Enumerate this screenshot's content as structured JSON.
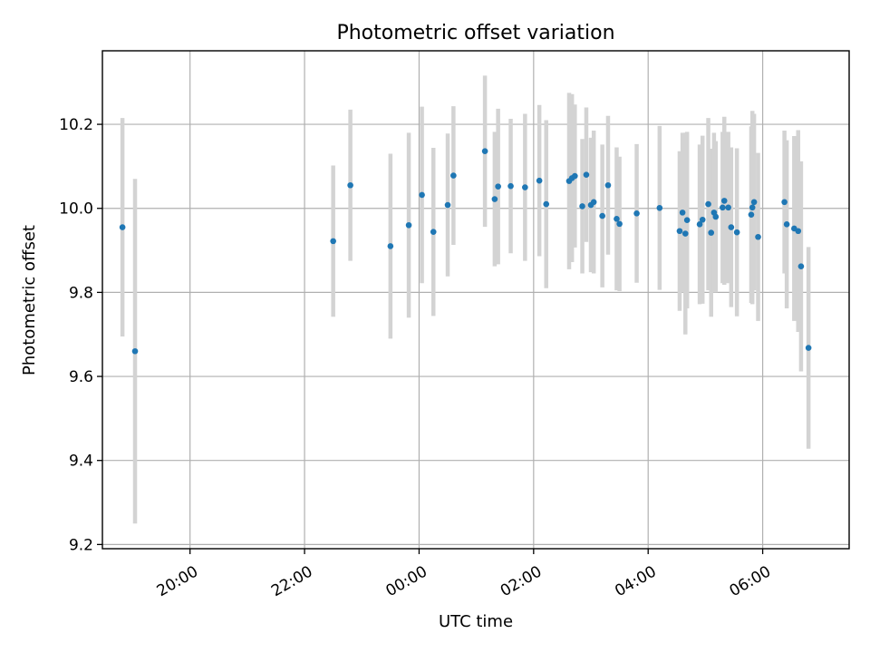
{
  "chart_data": {
    "type": "scatter",
    "title": "Photometric offset variation",
    "xlabel": "UTC time",
    "ylabel": "Photometric offset",
    "grid": true,
    "xlim": [
      18.47,
      31.51
    ],
    "ylim": [
      9.19,
      10.375
    ],
    "x_ticks": [
      {
        "value": 20,
        "label": "20:00"
      },
      {
        "value": 22,
        "label": "22:00"
      },
      {
        "value": 24,
        "label": "00:00"
      },
      {
        "value": 26,
        "label": "02:00"
      },
      {
        "value": 28,
        "label": "04:00"
      },
      {
        "value": 30,
        "label": "06:00"
      }
    ],
    "y_ticks": [
      {
        "value": 9.2,
        "label": "9.2"
      },
      {
        "value": 9.4,
        "label": "9.4"
      },
      {
        "value": 9.6,
        "label": "9.6"
      },
      {
        "value": 9.8,
        "label": "9.8"
      },
      {
        "value": 10.0,
        "label": "10.0"
      },
      {
        "value": 10.2,
        "label": "10.2"
      }
    ],
    "colors": {
      "points": "#1f77b4",
      "error_bars": "#d3d3d3",
      "grid": "#b0b0b0"
    },
    "series": [
      {
        "x": [
          18.82,
          19.04,
          22.5,
          22.8,
          23.5,
          23.82,
          24.05,
          24.25,
          24.5,
          24.6,
          25.15,
          25.32,
          25.38,
          25.6,
          25.85,
          26.1,
          26.22,
          26.62,
          26.67,
          26.72,
          26.85,
          26.92,
          27.0,
          27.05,
          27.2,
          27.3,
          27.45,
          27.5,
          27.8,
          28.2,
          28.55,
          28.6,
          28.65,
          28.68,
          28.9,
          28.95,
          29.05,
          29.1,
          29.15,
          29.18,
          29.3,
          29.33,
          29.4,
          29.45,
          29.55,
          29.8,
          29.82,
          29.85,
          29.92,
          30.38,
          30.42,
          30.55,
          30.62,
          30.67,
          30.8
        ],
        "y": [
          9.955,
          9.66,
          9.922,
          10.055,
          9.91,
          9.96,
          10.032,
          9.944,
          10.008,
          10.078,
          10.136,
          10.022,
          10.052,
          10.053,
          10.05,
          10.066,
          10.01,
          10.065,
          10.072,
          10.077,
          10.005,
          10.08,
          10.008,
          10.015,
          9.982,
          10.055,
          9.975,
          9.963,
          9.988,
          10.001,
          9.946,
          9.99,
          9.94,
          9.972,
          9.962,
          9.973,
          10.01,
          9.942,
          9.99,
          9.98,
          10.002,
          10.018,
          10.002,
          9.955,
          9.943,
          9.985,
          10.002,
          10.015,
          9.932,
          10.015,
          9.962,
          9.952,
          9.946,
          9.862,
          9.668
        ],
        "err": [
          0.26,
          0.41,
          0.18,
          0.18,
          0.22,
          0.22,
          0.21,
          0.2,
          0.17,
          0.165,
          0.18,
          0.16,
          0.185,
          0.16,
          0.175,
          0.18,
          0.2,
          0.21,
          0.2,
          0.17,
          0.16,
          0.16,
          0.16,
          0.17,
          0.17,
          0.165,
          0.17,
          0.16,
          0.165,
          0.195,
          0.19,
          0.19,
          0.24,
          0.21,
          0.19,
          0.2,
          0.205,
          0.2,
          0.19,
          0.18,
          0.18,
          0.2,
          0.18,
          0.19,
          0.2,
          0.21,
          0.23,
          0.21,
          0.2,
          0.17,
          0.2,
          0.22,
          0.24,
          0.25,
          0.24
        ]
      }
    ]
  }
}
